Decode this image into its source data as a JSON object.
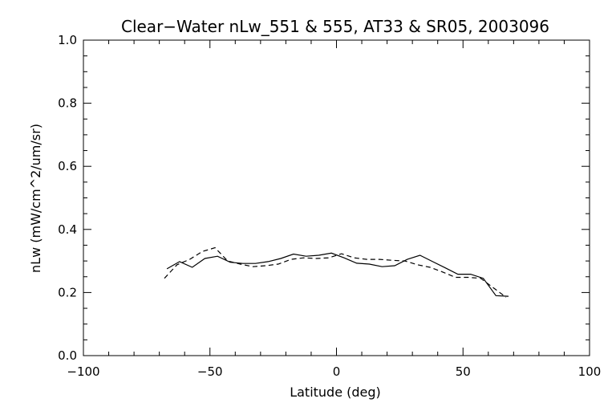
{
  "chart_data": {
    "type": "line",
    "title": "Clear−Water nLw_551 & 555, AT33 & SR05, 2003096",
    "xlabel": "Latitude (deg)",
    "ylabel": "nLw (mW/cm^2/um/sr)",
    "xlim": [
      -100,
      100
    ],
    "ylim": [
      0.0,
      1.0
    ],
    "xticks": [
      -100,
      -50,
      0,
      50,
      100
    ],
    "xtick_labels": [
      "−100",
      "−50",
      "0",
      "50",
      "100"
    ],
    "yticks": [
      0.0,
      0.2,
      0.4,
      0.6,
      0.8,
      1.0
    ],
    "ytick_labels": [
      "0.0",
      "0.2",
      "0.4",
      "0.6",
      "0.8",
      "1.0"
    ],
    "grid": false,
    "series": [
      {
        "style": "solid",
        "color": "#000000",
        "x": [
          -67,
          -62,
          -57,
          -52,
          -47,
          -42,
          -37,
          -32,
          -27,
          -22,
          -17,
          -12,
          -7,
          -2,
          3,
          8,
          13,
          18,
          23,
          28,
          33,
          38,
          43,
          48,
          53,
          58,
          63,
          68
        ],
        "y": [
          0.275,
          0.298,
          0.28,
          0.308,
          0.315,
          0.296,
          0.292,
          0.292,
          0.298,
          0.308,
          0.322,
          0.315,
          0.318,
          0.325,
          0.31,
          0.293,
          0.29,
          0.282,
          0.285,
          0.305,
          0.318,
          0.298,
          0.278,
          0.258,
          0.258,
          0.245,
          0.19,
          0.188
        ]
      },
      {
        "style": "dashed",
        "color": "#000000",
        "x": [
          -68,
          -63,
          -58,
          -53,
          -48,
          -43,
          -38,
          -33,
          -28,
          -23,
          -18,
          -13,
          -8,
          -3,
          2,
          7,
          12,
          17,
          22,
          27,
          32,
          37,
          42,
          47,
          52,
          57,
          62,
          67
        ],
        "y": [
          0.245,
          0.288,
          0.305,
          0.33,
          0.342,
          0.3,
          0.29,
          0.282,
          0.285,
          0.29,
          0.305,
          0.31,
          0.308,
          0.31,
          0.323,
          0.31,
          0.305,
          0.305,
          0.302,
          0.3,
          0.288,
          0.28,
          0.265,
          0.248,
          0.248,
          0.245,
          0.215,
          0.185
        ]
      }
    ]
  }
}
